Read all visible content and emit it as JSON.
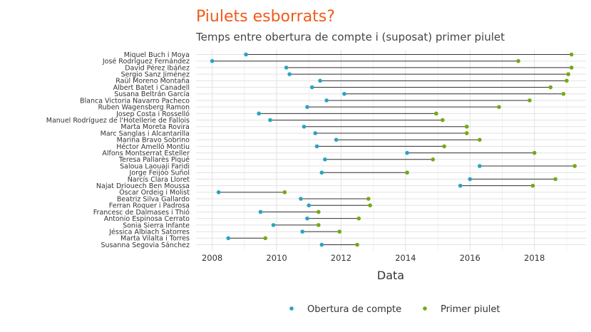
{
  "colors": {
    "title": "#f05a1a",
    "opening": "#2aa3c2",
    "tweet": "#76a814",
    "segment": "#333333",
    "grid_major": "#e2e2e2",
    "grid_minor": "#f0f0f0"
  },
  "chart_data": {
    "type": "dumbbell",
    "title": "Piulets esborrats?",
    "subtitle": "Temps entre obertura de compte i (suposat) primer piulet",
    "xlabel": "Data",
    "ylabel": "",
    "xlim": [
      2007.5,
      2019.6
    ],
    "xticks": [
      2008,
      2010,
      2012,
      2014,
      2016,
      2018
    ],
    "grid": true,
    "legend_position": "bottom",
    "series": [
      {
        "key": "open",
        "name": "Obertura de compte"
      },
      {
        "key": "tweet",
        "name": "Primer piulet"
      }
    ],
    "rows": [
      {
        "name": "Miquel Buch i Moya",
        "open": 2009.05,
        "tweet": 2019.15
      },
      {
        "name": "José Rodríguez Fernández",
        "open": 2008.0,
        "tweet": 2017.5
      },
      {
        "name": "David Pérez Ibáñez",
        "open": 2010.3,
        "tweet": 2019.15
      },
      {
        "name": "Sergio Sanz Jiménez",
        "open": 2010.4,
        "tweet": 2019.05
      },
      {
        "name": "Raül Moreno Montaña",
        "open": 2011.35,
        "tweet": 2019.0
      },
      {
        "name": "Albert Batet i Canadell",
        "open": 2011.1,
        "tweet": 2018.5
      },
      {
        "name": "Susana Beltrán García",
        "open": 2012.1,
        "tweet": 2018.9
      },
      {
        "name": "Blanca Victoria Navarro Pacheco",
        "open": 2011.55,
        "tweet": 2017.85
      },
      {
        "name": "Ruben Wagensberg Ramon",
        "open": 2010.95,
        "tweet": 2016.9
      },
      {
        "name": "Josep Costa i Rosselló",
        "open": 2009.45,
        "tweet": 2014.95
      },
      {
        "name": "Manuel Rodríguez de l'Hotellerie de Fallois",
        "open": 2009.8,
        "tweet": 2015.15
      },
      {
        "name": "Marta Moreta Rovira",
        "open": 2010.85,
        "tweet": 2015.9
      },
      {
        "name": "Marc Sanglas i Alcantarilla",
        "open": 2011.2,
        "tweet": 2015.9
      },
      {
        "name": "Marina Bravo Sobrino",
        "open": 2011.85,
        "tweet": 2016.3
      },
      {
        "name": "Héctor Amelló Montiu",
        "open": 2011.25,
        "tweet": 2015.2
      },
      {
        "name": "Alfons Montserrat Esteller",
        "open": 2014.05,
        "tweet": 2018.0
      },
      {
        "name": "Teresa Pallarès Piqué",
        "open": 2011.5,
        "tweet": 2014.85
      },
      {
        "name": "Saloua Laouaji Faridi",
        "open": 2016.3,
        "tweet": 2019.25
      },
      {
        "name": "Jorge Feijóo Suñol",
        "open": 2011.4,
        "tweet": 2014.05
      },
      {
        "name": "Narcís Clara Lloret",
        "open": 2016.0,
        "tweet": 2018.65
      },
      {
        "name": "Najat Driouech Ben Moussa",
        "open": 2015.7,
        "tweet": 2017.95
      },
      {
        "name": "Òscar Ordeig i Molist",
        "open": 2008.2,
        "tweet": 2010.25
      },
      {
        "name": "Beatriz Silva Gallardo",
        "open": 2010.75,
        "tweet": 2012.85
      },
      {
        "name": "Ferran Roquer i Padrosa",
        "open": 2011.0,
        "tweet": 2012.9
      },
      {
        "name": "Francesc de Dalmases i Thió",
        "open": 2009.5,
        "tweet": 2011.3
      },
      {
        "name": "Antonio Espinosa Cerrato",
        "open": 2010.95,
        "tweet": 2012.55
      },
      {
        "name": "Sonia Sierra Infante",
        "open": 2009.9,
        "tweet": 2011.3
      },
      {
        "name": "Jéssica Albiach Satorres",
        "open": 2010.8,
        "tweet": 2011.95
      },
      {
        "name": "Marta Vilalta i Torres",
        "open": 2008.5,
        "tweet": 2009.65
      },
      {
        "name": "Susanna Segovia Sánchez",
        "open": 2011.4,
        "tweet": 2012.5
      }
    ]
  }
}
